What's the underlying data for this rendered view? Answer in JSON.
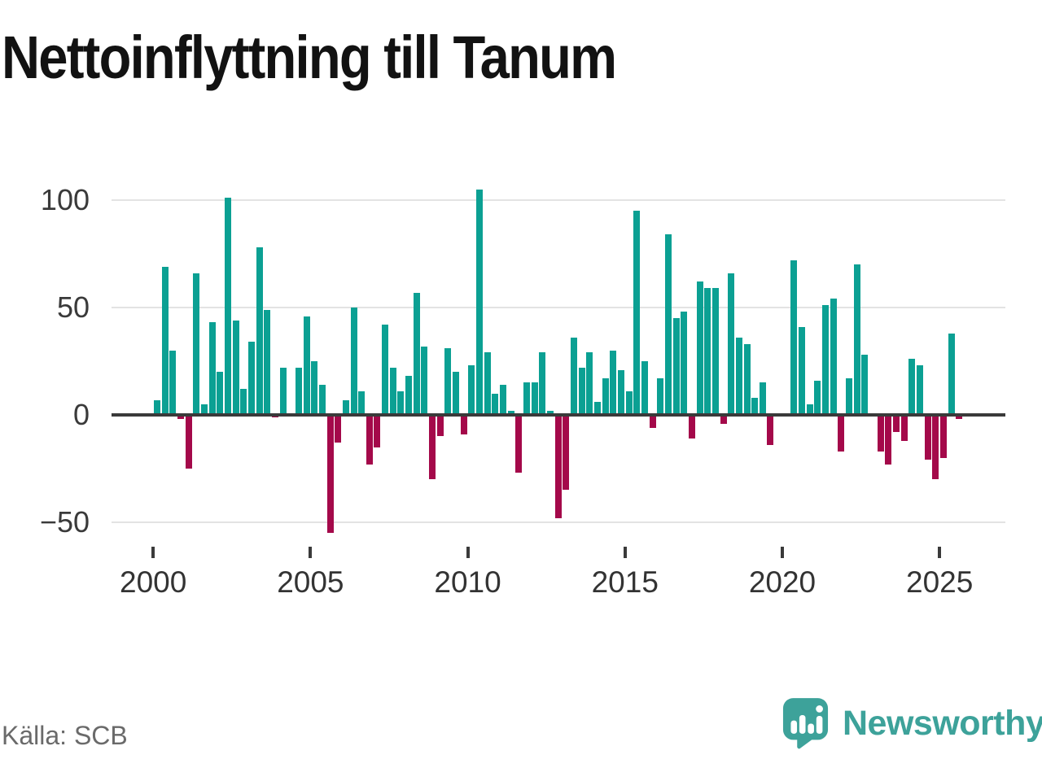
{
  "title": "Nettoinflyttning till Tanum",
  "source": "Källa: SCB",
  "branding": {
    "name": "Newsworthy",
    "icon": "speech-bubble-bar-chart-icon"
  },
  "colors": {
    "positive": "#0ba093",
    "negative": "#a4094a",
    "brand": "#3da29a",
    "axis": "#3a3a3a",
    "grid": "#e3e3e3"
  },
  "chart_data": {
    "type": "bar",
    "title": "Nettoinflyttning till Tanum",
    "frequency": "quarterly",
    "start_year": 2000,
    "start_quarter": 1,
    "end_year": 2025,
    "end_quarter": 3,
    "values": [
      7,
      69,
      30,
      -2,
      -25,
      66,
      5,
      43,
      20,
      101,
      44,
      12,
      34,
      78,
      49,
      -1,
      22,
      0,
      22,
      46,
      25,
      14,
      -55,
      -13,
      7,
      50,
      11,
      -23,
      -15,
      42,
      22,
      11,
      18,
      57,
      32,
      -30,
      -10,
      31,
      20,
      -9,
      23,
      105,
      29,
      10,
      14,
      2,
      -27,
      15,
      15,
      29,
      2,
      -48,
      -35,
      36,
      22,
      29,
      6,
      17,
      30,
      21,
      11,
      95,
      25,
      -6,
      17,
      84,
      45,
      48,
      -11,
      62,
      59,
      59,
      -4,
      66,
      36,
      33,
      8,
      15,
      -14,
      0,
      0,
      72,
      41,
      5,
      16,
      51,
      54,
      -17,
      17,
      70,
      28,
      0,
      -17,
      -23,
      -8,
      -12,
      26,
      23,
      -21,
      -30,
      -20,
      38,
      -2
    ],
    "y_ticks": [
      {
        "value": 100,
        "label": "100"
      },
      {
        "value": 50,
        "label": "50"
      },
      {
        "value": 0,
        "label": "0"
      },
      {
        "value": -50,
        "label": "−50"
      }
    ],
    "x_ticks": [
      {
        "year": 2000,
        "label": "2000"
      },
      {
        "year": 2005,
        "label": "2005"
      },
      {
        "year": 2010,
        "label": "2010"
      },
      {
        "year": 2015,
        "label": "2015"
      },
      {
        "year": 2020,
        "label": "2020"
      },
      {
        "year": 2025,
        "label": "2025"
      }
    ],
    "ylim": [
      -62,
      116
    ],
    "grid": "horizontal",
    "legend": "none"
  }
}
